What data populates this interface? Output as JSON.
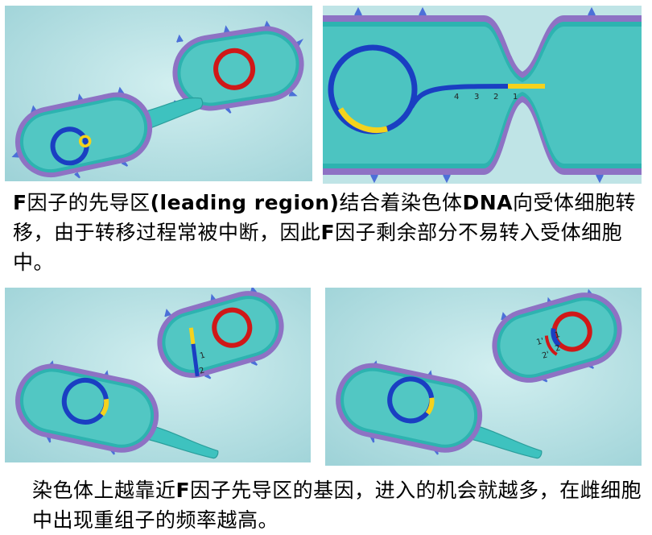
{
  "panels": {
    "p1": {
      "labels": []
    },
    "p2": {
      "labels": [
        "4",
        "3",
        "2",
        "1"
      ]
    },
    "p3": {
      "labels": [
        "1",
        "2"
      ]
    },
    "p4": {
      "labels": [
        "1'",
        "2'",
        "2",
        "1"
      ]
    }
  },
  "caption_top": {
    "bold_1": "F",
    "text_1": "因子的先导区",
    "bold_2": "(leading region)",
    "text_2": "结合着染色体",
    "bold_3": "DNA",
    "text_3": "向受体细胞转移，由于转移过程常被中断，因此",
    "bold_4": "F",
    "text_4": "因子剩余部分不易转入受体细胞中。"
  },
  "caption_bottom": {
    "text_1": "染色体上越靠近",
    "bold_1": "F",
    "text_2": "因子先导区的基因，进入的机会就越多，在雌细胞中出现重组子的频率越高。"
  },
  "colors": {
    "background": "#b8e0e3",
    "cell_fill": "#3ec2bf",
    "membrane_outer": "#8e72c4",
    "membrane_inner": "#2db3b0",
    "chromosome_blue": "#1a3fc2",
    "f_factor_yellow": "#f5d21c",
    "plasmid_red": "#d01818"
  }
}
